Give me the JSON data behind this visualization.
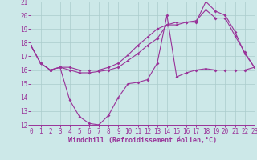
{
  "background_color": "#cce8e8",
  "grid_color": "#aacccc",
  "line_color": "#993399",
  "xlabel": "Windchill (Refroidissement éolien,°C)",
  "xlim": [
    0,
    23
  ],
  "ylim": [
    12,
    21
  ],
  "yticks": [
    12,
    13,
    14,
    15,
    16,
    17,
    18,
    19,
    20,
    21
  ],
  "xticks": [
    0,
    1,
    2,
    3,
    4,
    5,
    6,
    7,
    8,
    9,
    10,
    11,
    12,
    13,
    14,
    15,
    16,
    17,
    18,
    19,
    20,
    21,
    22,
    23
  ],
  "line1_x": [
    0,
    1,
    2,
    3,
    4,
    5,
    6,
    7,
    8,
    9,
    10,
    11,
    12,
    13,
    14,
    15,
    16,
    17,
    18,
    19,
    20,
    21,
    22,
    23
  ],
  "line1_y": [
    17.8,
    16.5,
    16.0,
    16.2,
    13.8,
    12.6,
    12.1,
    12.0,
    12.7,
    14.0,
    15.0,
    15.1,
    15.3,
    16.5,
    20.0,
    15.5,
    15.8,
    16.0,
    16.1,
    16.0,
    16.0,
    16.0,
    16.0,
    16.2
  ],
  "line2_x": [
    0,
    1,
    2,
    3,
    4,
    5,
    6,
    7,
    8,
    9,
    10,
    11,
    12,
    13,
    14,
    15,
    16,
    17,
    18,
    19,
    20,
    21,
    22,
    23
  ],
  "line2_y": [
    17.8,
    16.5,
    16.0,
    16.2,
    16.0,
    15.8,
    15.8,
    15.9,
    16.0,
    16.2,
    16.7,
    17.2,
    17.8,
    18.3,
    19.3,
    19.5,
    19.5,
    19.5,
    21.0,
    20.3,
    20.0,
    18.8,
    17.2,
    16.2
  ],
  "line3_x": [
    0,
    1,
    2,
    3,
    4,
    5,
    6,
    7,
    8,
    9,
    10,
    11,
    12,
    13,
    14,
    15,
    16,
    17,
    18,
    19,
    20,
    21,
    22,
    23
  ],
  "line3_y": [
    17.8,
    16.5,
    16.0,
    16.2,
    16.2,
    16.0,
    16.0,
    16.0,
    16.2,
    16.5,
    17.1,
    17.8,
    18.4,
    19.0,
    19.3,
    19.3,
    19.5,
    19.6,
    20.4,
    19.8,
    19.8,
    18.5,
    17.3,
    16.2
  ],
  "markersize": 2.0,
  "linewidth": 0.8,
  "tick_fontsize": 5.5,
  "xlabel_fontsize": 6.0
}
